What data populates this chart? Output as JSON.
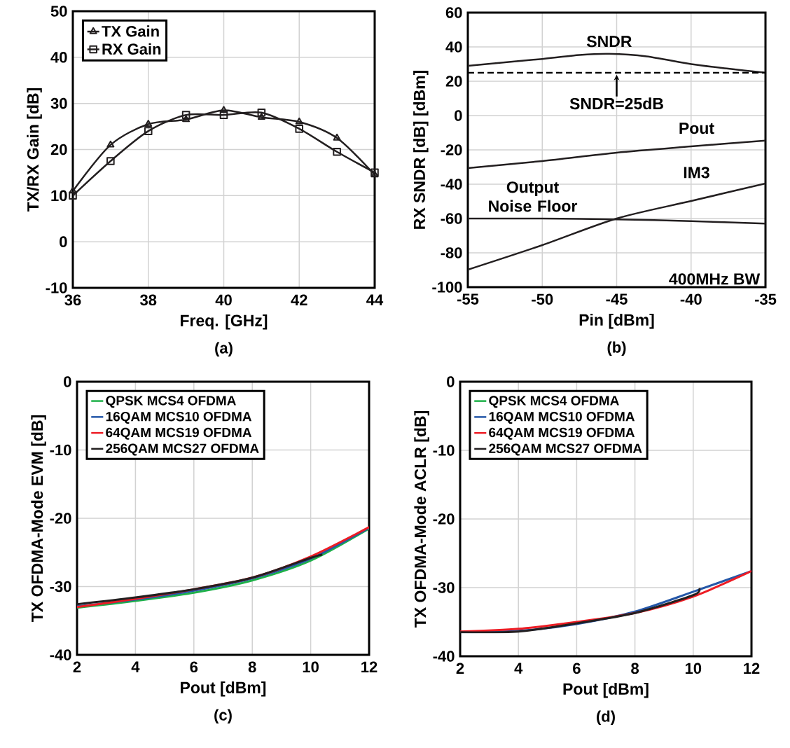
{
  "chart_data": [
    {
      "type": "line",
      "title": "(a)",
      "xlabel": "Freq. [GHz]",
      "ylabel": "TX/RX Gain [dB]",
      "x": [
        36,
        37,
        38,
        39,
        40,
        41,
        42,
        43,
        44
      ],
      "xlim": [
        36,
        44
      ],
      "xticks": [
        36,
        38,
        40,
        42,
        44
      ],
      "ylim": [
        -10,
        50
      ],
      "yticks": [
        -10,
        0,
        10,
        20,
        30,
        40,
        50
      ],
      "grid": true,
      "legend": "top left",
      "series": [
        {
          "name": "TX Gain",
          "color": "#231f20",
          "marker": "triangle",
          "values": [
            11,
            21,
            25.5,
            26.5,
            28.5,
            27,
            26,
            22.5,
            14.5
          ]
        },
        {
          "name": "RX Gain",
          "color": "#231f20",
          "marker": "square",
          "values": [
            10,
            17.5,
            24,
            27.5,
            27.5,
            28,
            24.5,
            19.5,
            15
          ]
        }
      ]
    },
    {
      "type": "line",
      "title": "(b)",
      "xlabel": "Pin [dBm]",
      "ylabel": "RX SNDR [dB] [dBm]",
      "x": [
        -55,
        -50,
        -45,
        -40,
        -35
      ],
      "xlim": [
        -55,
        -35
      ],
      "xticks": [
        -55,
        -50,
        -45,
        -40,
        -35
      ],
      "ylim": [
        -100,
        60
      ],
      "yticks": [
        -100,
        -80,
        -60,
        -40,
        -20,
        0,
        20,
        40,
        60
      ],
      "grid": true,
      "ref_lines": [
        {
          "axis": "y",
          "value": 25,
          "label": "SNDR=25dB",
          "line_style": "dashed"
        }
      ],
      "annotations": [
        "400MHz BW"
      ],
      "series": [
        {
          "name": "SNDR",
          "color": "#231f20",
          "x": [
            -55,
            -50,
            -47.5,
            -45.5,
            -43,
            -40,
            -37.5,
            -35
          ],
          "values": [
            29,
            33,
            35.3,
            36,
            34.5,
            30,
            27.3,
            25
          ]
        },
        {
          "name": "Pout",
          "color": "#231f20",
          "values": [
            -30.6,
            -26.5,
            -21.6,
            -18,
            -14.6
          ]
        },
        {
          "name": "IM3",
          "color": "#231f20",
          "values": [
            -89.8,
            -75.5,
            -60,
            -49.8,
            -39.6
          ]
        },
        {
          "name": "Output Noise Floor",
          "color": "#231f20",
          "values": [
            -60,
            -60,
            -60.5,
            -61.5,
            -63
          ]
        }
      ]
    },
    {
      "type": "line",
      "title": "(c)",
      "xlabel": "Pout [dBm]",
      "ylabel": "TX OFDMA-Mode EVM [dB]",
      "x": [
        2,
        4,
        6,
        8,
        10,
        12
      ],
      "xlim": [
        2,
        12
      ],
      "xticks": [
        2,
        4,
        6,
        8,
        10,
        12
      ],
      "ylim": [
        -40,
        0
      ],
      "yticks": [
        -40,
        -30,
        -20,
        -10,
        0
      ],
      "grid": true,
      "legend": "top left",
      "series": [
        {
          "name": "QPSK MCS4 OFDMA",
          "color": "#1fb14a",
          "values": [
            -33.1,
            -32.1,
            -30.9,
            -29.1,
            -26.2,
            -21.5
          ]
        },
        {
          "name": "16QAM MCS10 OFDMA",
          "color": "#2457a8",
          "values": [
            -32.9,
            -31.9,
            -30.6,
            -28.8,
            -25.9,
            -21.4
          ]
        },
        {
          "name": "64QAM MCS19 OFDMA",
          "color": "#ed1c24",
          "values": [
            -33,
            -31.8,
            -30.4,
            -28.7,
            -25.6,
            -21.3
          ]
        },
        {
          "name": "256QAM MCS27 OFDMA",
          "color": "#231f20",
          "x": [
            2,
            4,
            6,
            8,
            10,
            10.4
          ],
          "values": [
            -32.6,
            -31.6,
            -30.4,
            -28.7,
            -25.8,
            -25.3
          ]
        }
      ]
    },
    {
      "type": "line",
      "title": "(d)",
      "xlabel": "Pout [dBm]",
      "ylabel": "TX OFDMA-Mode ACLR [dB]",
      "x": [
        2,
        4,
        6,
        8,
        10,
        12
      ],
      "xlim": [
        2,
        12
      ],
      "xticks": [
        2,
        4,
        6,
        8,
        10,
        12
      ],
      "ylim": [
        -40,
        0
      ],
      "yticks": [
        -40,
        -30,
        -20,
        -10,
        0
      ],
      "grid": true,
      "legend": "top left",
      "series": [
        {
          "name": "QPSK MCS4 OFDMA",
          "color": "#1fb14a",
          "values": [
            null,
            null,
            null,
            null,
            null,
            null
          ]
        },
        {
          "name": "16QAM MCS10 OFDMA",
          "color": "#2457a8",
          "values": [
            -36.5,
            -36.3,
            -35.3,
            -33.5,
            -30.6,
            -27.6
          ]
        },
        {
          "name": "64QAM MCS19 OFDMA",
          "color": "#ed1c24",
          "values": [
            -36.4,
            -36,
            -35,
            -33.7,
            -31.3,
            -27.6
          ]
        },
        {
          "name": "256QAM MCS27 OFDMA",
          "color": "#231f20",
          "x": [
            2,
            4,
            6,
            8,
            10,
            10.2
          ],
          "values": [
            -36.5,
            -36.4,
            -35.2,
            -33.7,
            -31.1,
            -30.1
          ]
        }
      ]
    }
  ]
}
